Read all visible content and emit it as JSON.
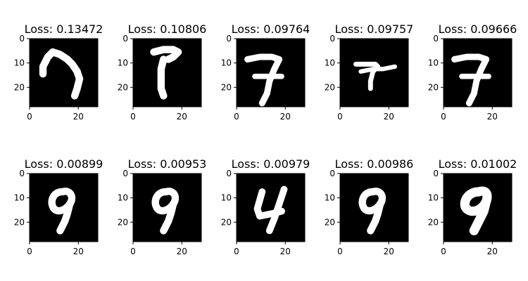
{
  "chart_data": {
    "type": "heatmap",
    "xlim": [
      0,
      28
    ],
    "ylim": [
      0,
      28
    ],
    "xticks": [
      0,
      20
    ],
    "yticks": [
      0,
      10,
      20
    ],
    "panels": [
      {
        "title": "Loss: 0.13472",
        "loss": 0.13472,
        "digit_shape": "hook"
      },
      {
        "title": "Loss: 0.10806",
        "loss": 0.10806,
        "digit_shape": "seven-curved"
      },
      {
        "title": "Loss: 0.09764",
        "loss": 0.09764,
        "digit_shape": "seven-crossed"
      },
      {
        "title": "Loss: 0.09757",
        "loss": 0.09757,
        "digit_shape": "seven-crossed-flat"
      },
      {
        "title": "Loss: 0.09666",
        "loss": 0.09666,
        "digit_shape": "seven-crossed"
      },
      {
        "title": "Loss: 0.00899",
        "loss": 0.00899,
        "digit_shape": "nine"
      },
      {
        "title": "Loss: 0.00953",
        "loss": 0.00953,
        "digit_shape": "nine"
      },
      {
        "title": "Loss: 0.00979",
        "loss": 0.00979,
        "digit_shape": "four"
      },
      {
        "title": "Loss: 0.00986",
        "loss": 0.00986,
        "digit_shape": "nine"
      },
      {
        "title": "Loss: 0.01002",
        "loss": 0.01002,
        "digit_shape": "nine-bold"
      }
    ]
  }
}
